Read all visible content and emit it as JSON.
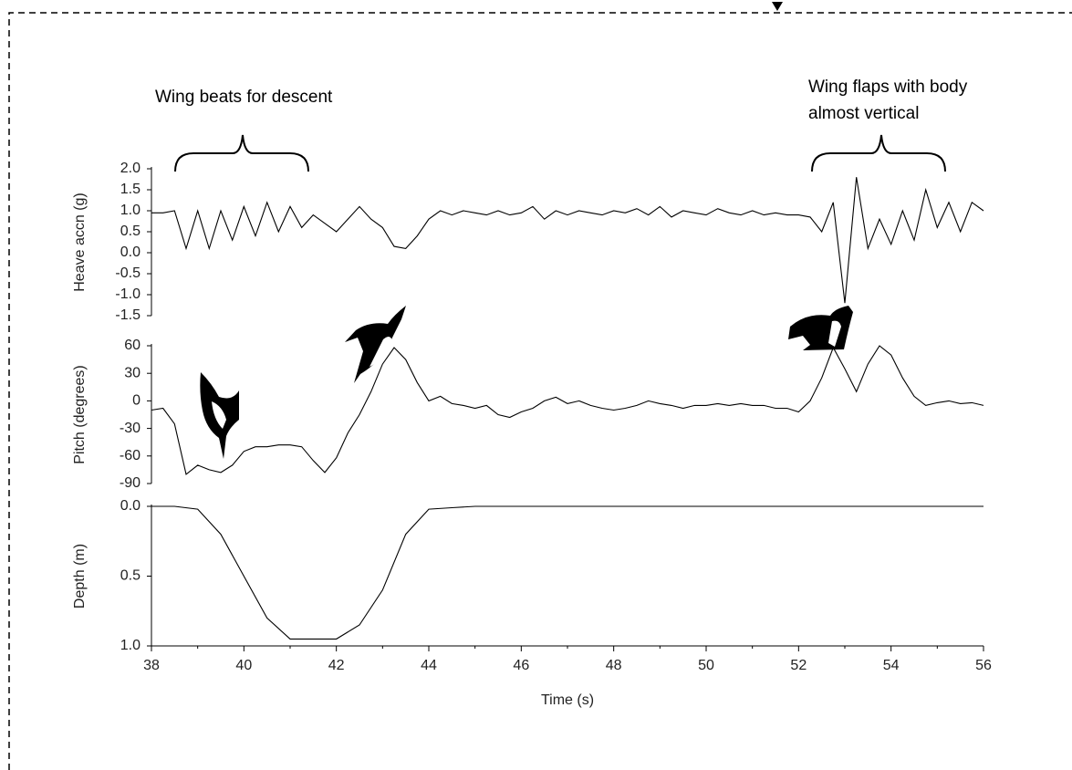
{
  "chart_data": [
    {
      "type": "line",
      "ylabel": "Heave accn (g)",
      "annotations": [
        [
          "Wing beats for descent"
        ],
        [
          "Wing flaps with body",
          "almost vertical"
        ]
      ],
      "x": [
        38,
        38.25,
        38.5,
        38.75,
        39,
        39.25,
        39.5,
        39.75,
        40,
        40.25,
        40.5,
        40.75,
        41,
        41.25,
        41.5,
        41.75,
        42,
        42.25,
        42.5,
        42.75,
        43,
        43.25,
        43.5,
        43.75,
        44,
        44.25,
        44.5,
        44.75,
        45,
        45.25,
        45.5,
        45.75,
        46,
        46.25,
        46.5,
        46.75,
        47,
        47.25,
        47.5,
        47.75,
        48,
        48.25,
        48.5,
        48.75,
        49,
        49.25,
        49.5,
        49.75,
        50,
        50.25,
        50.5,
        50.75,
        51,
        51.25,
        51.5,
        51.75,
        52,
        52.25,
        52.5,
        52.75,
        53,
        53.25,
        53.5,
        53.75,
        54,
        54.25,
        54.5,
        54.75,
        55,
        55.25,
        55.5,
        55.75,
        56
      ],
      "values": [
        0.95,
        0.95,
        1.0,
        0.1,
        1.0,
        0.1,
        1.0,
        0.3,
        1.1,
        0.4,
        1.2,
        0.5,
        1.1,
        0.6,
        0.9,
        0.7,
        0.5,
        0.8,
        1.1,
        0.8,
        0.6,
        0.15,
        0.1,
        0.4,
        0.8,
        1.0,
        0.9,
        1.0,
        0.95,
        0.9,
        1.0,
        0.9,
        0.95,
        1.1,
        0.8,
        1.0,
        0.9,
        1.0,
        0.95,
        0.9,
        1.0,
        0.95,
        1.05,
        0.9,
        1.1,
        0.85,
        1.0,
        0.95,
        0.9,
        1.05,
        0.95,
        0.9,
        1.0,
        0.9,
        0.95,
        0.9,
        0.9,
        0.85,
        0.5,
        1.2,
        -1.2,
        1.8,
        0.1,
        0.8,
        0.2,
        1.0,
        0.3,
        1.5,
        0.6,
        1.2,
        0.5,
        1.2,
        1.0
      ],
      "color": "#000000",
      "xlim": [
        38,
        56
      ],
      "ylim": [
        -1.5,
        2.0
      ],
      "yticks": [
        {
          "value": 2,
          "label": "2.0"
        },
        1.5,
        {
          "value": 1,
          "label": "1.0"
        },
        0.5,
        {
          "value": 0,
          "label": "0.0"
        },
        -0.5,
        {
          "value": -1,
          "label": "-1.0"
        },
        -1.5
      ]
    },
    {
      "type": "line",
      "ylabel": "Pitch (degrees)",
      "x": [
        38,
        38.25,
        38.5,
        38.75,
        39,
        39.25,
        39.5,
        39.75,
        40,
        40.25,
        40.5,
        40.75,
        41,
        41.25,
        41.5,
        41.75,
        42,
        42.25,
        42.5,
        42.75,
        43,
        43.25,
        43.5,
        43.75,
        44,
        44.25,
        44.5,
        44.75,
        45,
        45.25,
        45.5,
        45.75,
        46,
        46.25,
        46.5,
        46.75,
        47,
        47.25,
        47.5,
        47.75,
        48,
        48.25,
        48.5,
        48.75,
        49,
        49.25,
        49.5,
        49.75,
        50,
        50.25,
        50.5,
        50.75,
        51,
        51.25,
        51.5,
        51.75,
        52,
        52.25,
        52.5,
        52.75,
        53,
        53.25,
        53.5,
        53.75,
        54,
        54.25,
        54.5,
        54.75,
        55,
        55.25,
        55.5,
        55.75,
        56
      ],
      "values": [
        -10,
        -8,
        -25,
        -80,
        -70,
        -75,
        -78,
        -70,
        -55,
        -50,
        -50,
        -48,
        -48,
        -50,
        -65,
        -78,
        -62,
        -35,
        -15,
        10,
        40,
        58,
        45,
        20,
        0,
        5,
        -3,
        -5,
        -8,
        -5,
        -15,
        -18,
        -12,
        -8,
        0,
        4,
        -3,
        0,
        -5,
        -8,
        -10,
        -8,
        -5,
        0,
        -3,
        -5,
        -8,
        -5,
        -5,
        -3,
        -5,
        -3,
        -5,
        -5,
        -8,
        -8,
        -12,
        0,
        25,
        58,
        35,
        10,
        40,
        60,
        50,
        25,
        5,
        -5,
        -2,
        0,
        -3,
        -2,
        -5
      ],
      "color": "#000000",
      "xlim": [
        38,
        56
      ],
      "ylim": [
        -90,
        60
      ],
      "yticks": [
        60,
        30,
        0,
        -30,
        -60,
        -90
      ]
    },
    {
      "type": "line",
      "ylabel": "Depth (m)",
      "xlabel": "Time (s)",
      "x": [
        38,
        38.5,
        39,
        39.5,
        40,
        40.5,
        41,
        41.5,
        42,
        42.5,
        43,
        43.5,
        44,
        44.5,
        45,
        45.5,
        46,
        46.5,
        47,
        47.5,
        48,
        48.5,
        49,
        49.5,
        50,
        50.5,
        51,
        51.5,
        52,
        52.5,
        53,
        53.5,
        54,
        54.5,
        55,
        55.5,
        56
      ],
      "values": [
        0,
        0,
        0.02,
        0.2,
        0.5,
        0.8,
        0.95,
        0.95,
        0.95,
        0.85,
        0.6,
        0.2,
        0.02,
        0.01,
        0,
        0,
        0,
        0,
        0,
        0,
        0,
        0,
        0,
        0,
        0,
        0,
        0,
        0,
        0,
        0,
        0,
        0,
        0,
        0,
        0,
        0,
        0
      ],
      "color": "#000000",
      "xlim": [
        38,
        56
      ],
      "ylim": [
        0,
        1
      ],
      "inverted": true,
      "yticks": [
        {
          "value": 0,
          "label": "0.0"
        },
        0.5,
        {
          "value": 1,
          "label": "1.0"
        }
      ],
      "xticks": [
        38,
        40,
        42,
        44,
        46,
        48,
        50,
        52,
        54,
        56
      ]
    }
  ]
}
